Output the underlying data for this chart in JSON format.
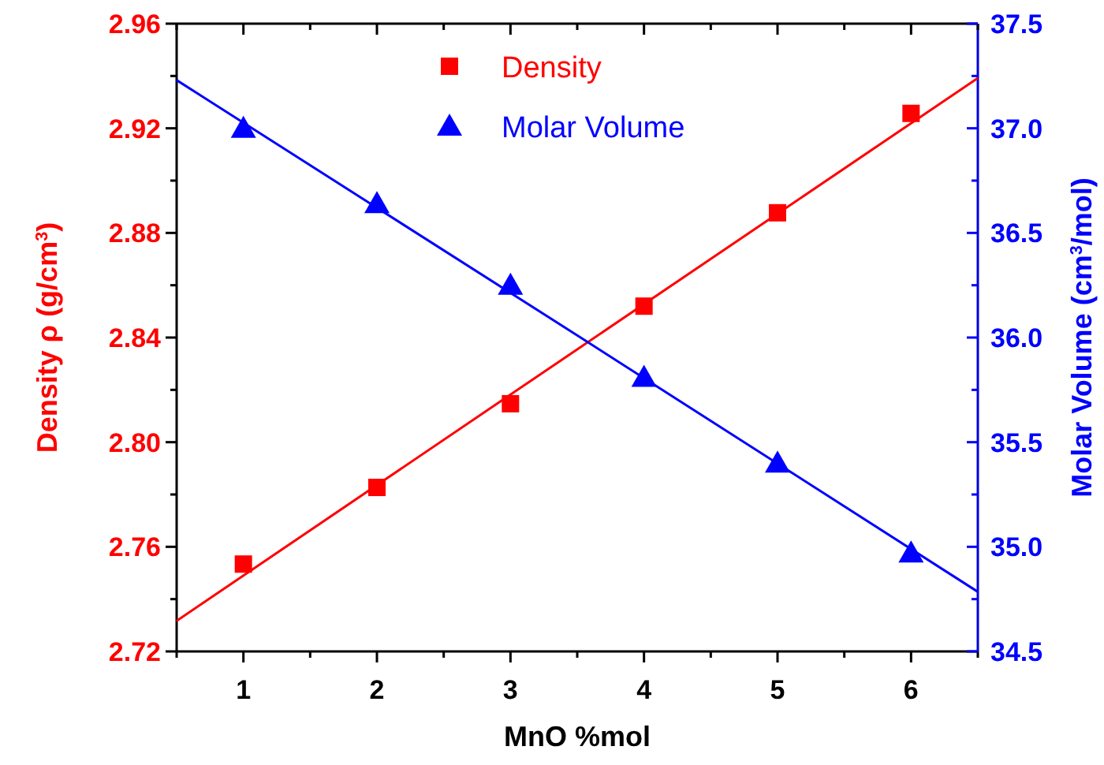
{
  "chart_data": {
    "type": "scatter",
    "xlabel": "MnO %mol",
    "ylabel": "Density ρ (g/cm$^{3}$)",
    "y2label": "Molar Volume (cm$^{3}$/mol)",
    "x": [
      1,
      2,
      3,
      4,
      5,
      6
    ],
    "series": [
      {
        "name": "Density",
        "color": "#ff0000",
        "values": [
          2.7534,
          2.7827,
          2.8147,
          2.852,
          2.8877,
          2.9257
        ],
        "marker": "square"
      },
      {
        "name": "Molar Volume",
        "color": "#0000ff",
        "values": [
          37.0,
          36.64,
          36.25,
          35.81,
          35.4,
          34.97
        ],
        "axis": "y2",
        "marker": "triangle"
      },
      {
        "type": "line",
        "color": "#ff0000",
        "x": [
          0.5,
          3.5,
          6.5
        ],
        "values": [
          2.7317,
          2.8355,
          2.9392
        ]
      },
      {
        "type": "line",
        "color": "#0000ff",
        "x": [
          0.5,
          3.5,
          6.5
        ],
        "values": [
          37.23,
          36.01,
          34.785
        ],
        "axis": "y2"
      }
    ],
    "xlim": [
      0.5,
      6.5
    ],
    "xticks": [
      {
        "value": 0.5,
        "label": null
      },
      1,
      {
        "value": 1.5,
        "label": null
      },
      2,
      {
        "value": 2.5,
        "label": null
      },
      3,
      {
        "value": 3.5,
        "label": null
      },
      4,
      {
        "value": 4.5,
        "label": null
      },
      5,
      {
        "value": 5.5,
        "label": null
      },
      6,
      {
        "value": 6.5,
        "label": null
      }
    ],
    "ylim": [
      2.72,
      2.96
    ],
    "yticks": [
      2.72,
      {
        "value": 2.74,
        "label": null
      },
      2.76,
      {
        "value": 2.78,
        "label": null
      },
      {
        "value": 2.8,
        "label": "2.80"
      },
      {
        "value": 2.82,
        "label": null
      },
      2.84,
      {
        "value": 2.86,
        "label": null
      },
      2.88,
      {
        "value": 2.9,
        "label": null
      },
      2.92,
      {
        "value": 2.94,
        "label": null
      },
      2.96
    ],
    "y2lim": [
      34.5,
      37.5
    ],
    "y2ticks": [
      34.5,
      {
        "value": 34.75,
        "label": null
      },
      {
        "value": 35,
        "label": "35.0"
      },
      {
        "value": 35.25,
        "label": null
      },
      35.5,
      {
        "value": 35.75,
        "label": null
      },
      {
        "value": 36,
        "label": "36.0"
      },
      {
        "value": 36.25,
        "label": null
      },
      36.5,
      {
        "value": 36.75,
        "label": null
      },
      {
        "value": 37,
        "label": "37.0"
      },
      {
        "value": 37.25,
        "label": null
      },
      37.5
    ],
    "legend": "top",
    "grid": false
  }
}
